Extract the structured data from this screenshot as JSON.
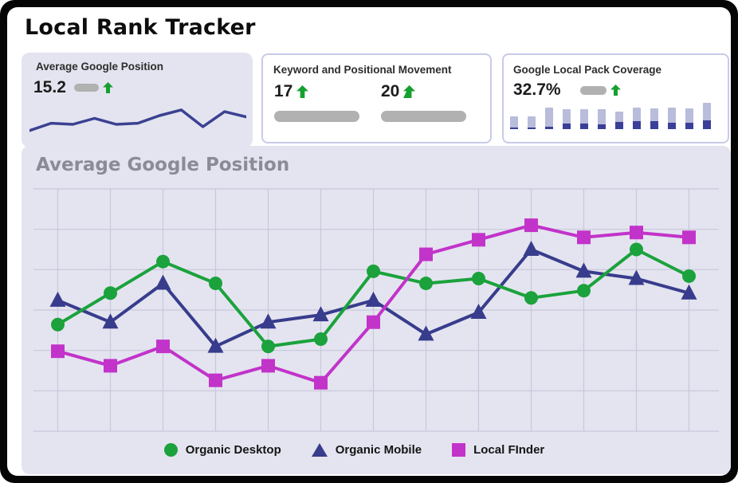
{
  "app": {
    "title": "Local Rank Tracker"
  },
  "colors": {
    "frame": "#050505",
    "surface": "#ffffff",
    "panel_bg": "#e4e4f0",
    "gridline": "#c7c7dc",
    "pill_gray": "#b1b1b1",
    "trend_green": "#15a02f",
    "sparkline_navy": "#3b4191",
    "series_green": "#1ba23c",
    "series_navy": "#383c8c",
    "series_magenta": "#c233c9",
    "lp_bar_light": "#b9bcdb",
    "lp_bar_dark": "#3a3f97"
  },
  "cards": {
    "avg_position": {
      "title": "Average Google Position",
      "value": "15.2",
      "trend": "up"
    },
    "keyword_movement": {
      "title": "Keyword and Positional Movement",
      "metrics": [
        {
          "value": "17",
          "trend": "up"
        },
        {
          "value": "20",
          "trend": "up"
        }
      ]
    },
    "local_pack": {
      "title": "Google Local Pack Coverage",
      "value": "32.7%",
      "trend": "up"
    }
  },
  "chart_data": [
    {
      "id": "average-google-position-line",
      "type": "line",
      "title": "Average Google Position",
      "xlabel": "",
      "ylabel": "",
      "axes_labeled": false,
      "units": "percent of plot height from bottom (no axis tick labels shown in source)",
      "x": [
        1,
        2,
        3,
        4,
        5,
        6,
        7,
        8,
        9,
        10,
        11,
        12,
        13
      ],
      "grid": {
        "h_lines": 7,
        "v_lines": 13,
        "grid_on": true
      },
      "legend_position": "bottom",
      "series": [
        {
          "name": "Organic Desktop",
          "marker": "circle",
          "color": "#1ba23c",
          "values": [
            44,
            57,
            70,
            61,
            35,
            38,
            66,
            61,
            63,
            55,
            58,
            75,
            64
          ]
        },
        {
          "name": "Organic Mobile",
          "marker": "triangle",
          "color": "#383c8c",
          "values": [
            54,
            45,
            61,
            35,
            45,
            48,
            54,
            40,
            49,
            75,
            66,
            63,
            57
          ]
        },
        {
          "name": "Local FInder",
          "marker": "square",
          "color": "#c233c9",
          "values": [
            33,
            27,
            35,
            21,
            27,
            20,
            45,
            73,
            79,
            85,
            80,
            82,
            80
          ]
        }
      ],
      "draw_order": [
        1,
        0,
        2
      ]
    },
    {
      "id": "average-position-sparkline",
      "type": "line",
      "title": "",
      "color": "#3b4191",
      "units": "percent of sparkline height from bottom (decorative trend line)",
      "values": [
        23,
        44,
        41,
        58,
        41,
        44,
        66,
        82,
        34,
        77,
        62
      ]
    },
    {
      "id": "local-pack-coverage-bars",
      "type": "bar",
      "title": "",
      "units": "pixel heights of mini stacked bars (no axis shown in source)",
      "categories": [
        1,
        2,
        3,
        4,
        5,
        6,
        7,
        8,
        9,
        10,
        11,
        12
      ],
      "series": [
        {
          "name": "total",
          "values": [
            16,
            16,
            27,
            25,
            25,
            25,
            22,
            27,
            26,
            27,
            26,
            33
          ]
        },
        {
          "name": "dark-bottom",
          "values": [
            2,
            2,
            3,
            7,
            7,
            6,
            9,
            10,
            10,
            8,
            8,
            11
          ]
        }
      ]
    }
  ]
}
